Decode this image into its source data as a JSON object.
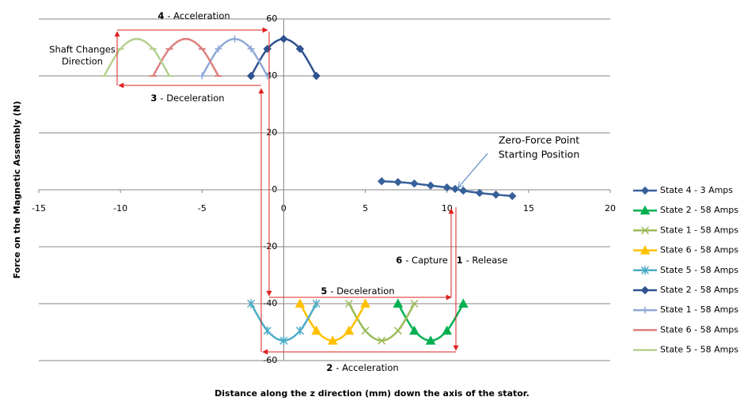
{
  "chart_data": {
    "type": "line",
    "xlabel": "Distance along the z direction (mm) down the axis of the stator.",
    "ylabel": "Force on the Magnetic Assembly (N)",
    "xlim": [
      -15,
      20
    ],
    "xticks": [
      -15,
      -10,
      -5,
      0,
      5,
      10,
      15,
      20
    ],
    "ylim": [
      -60,
      60
    ],
    "yticks": [
      -60,
      -40,
      -20,
      0,
      20,
      40,
      60
    ],
    "grid": true,
    "legend": "right",
    "series": [
      {
        "name": "State 4 - 3 Amps",
        "color": "#36609a",
        "marker": "diamond",
        "x": [
          6,
          7,
          8,
          9,
          10,
          10.5,
          11,
          12,
          13,
          14
        ],
        "values": [
          3,
          2.7,
          2.2,
          1.5,
          0.8,
          0.3,
          -0.3,
          -1.1,
          -1.7,
          -2.2
        ]
      },
      {
        "name": "State 2 - 58 Amps",
        "color": "#00b050",
        "marker": "triangle",
        "x": [
          7,
          8,
          9,
          10,
          11
        ],
        "values": [
          -40,
          -49.5,
          -53,
          -49.5,
          -40
        ]
      },
      {
        "name": "State 1 - 58 Amps",
        "color": "#9bbb59",
        "marker": "x",
        "x": [
          4,
          5,
          6,
          7,
          8
        ],
        "values": [
          -40,
          -49.5,
          -53,
          -49.5,
          -40
        ]
      },
      {
        "name": "State 6 - 58 Amps",
        "color": "#ffc000",
        "marker": "triangle",
        "x": [
          1,
          2,
          3,
          4,
          5
        ],
        "values": [
          -40,
          -49.5,
          -53,
          -49.5,
          -40
        ]
      },
      {
        "name": "State 5 - 58 Amps",
        "color": "#4bacc6",
        "marker": "asterisk",
        "x": [
          -2,
          -1,
          0,
          1,
          2
        ],
        "values": [
          -40,
          -49.5,
          -53,
          -49.5,
          -40
        ]
      },
      {
        "name": "State 2 - 58 Amps",
        "color": "#2f5290",
        "marker": "diamond",
        "x": [
          -2,
          -1,
          0,
          1,
          2
        ],
        "values": [
          40,
          49.5,
          53,
          49.5,
          40
        ]
      },
      {
        "name": "State 1 - 58 Amps",
        "color": "#8ea9d6",
        "marker": "plus",
        "x": [
          -5,
          -4,
          -3,
          -2,
          -1
        ],
        "values": [
          40,
          49.5,
          53,
          49.5,
          40
        ]
      },
      {
        "name": "State 6 - 58 Amps",
        "color": "#dd7f7f",
        "marker": "dash",
        "x": [
          -8,
          -7,
          -6,
          -5,
          -4
        ],
        "values": [
          40,
          49.5,
          53,
          49.5,
          40
        ]
      },
      {
        "name": "State 5 - 58 Amps",
        "color": "#b5d090",
        "marker": "dash",
        "x": [
          -11,
          -10,
          -9,
          -8,
          -7
        ],
        "values": [
          40,
          49.5,
          53,
          49.5,
          40
        ]
      }
    ],
    "annotations": [
      {
        "number": "4",
        "text": "- Acceleration"
      },
      {
        "number": "3",
        "text": "- Deceleration"
      },
      {
        "number": "6",
        "text": "- Capture"
      },
      {
        "number": "1",
        "text": "- Release"
      },
      {
        "number": "5",
        "text": "- Deceleration"
      },
      {
        "number": "2",
        "text": "- Acceleration"
      }
    ],
    "notes": [
      {
        "lines": [
          "Shaft Changes",
          "Direction"
        ]
      },
      {
        "lines": [
          "Zero-Force Point",
          "Starting Position"
        ]
      }
    ]
  }
}
